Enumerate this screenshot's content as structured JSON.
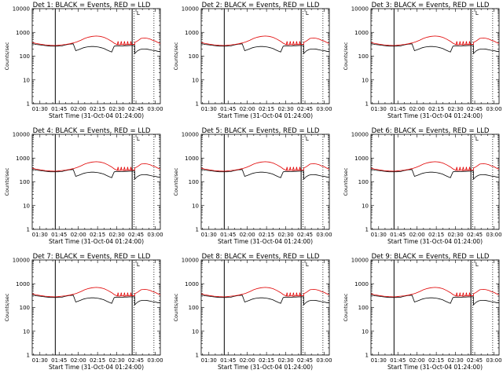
{
  "chart_data": {
    "layout": "3x3 grid",
    "type": "line",
    "panels": [
      {
        "title": "Det 1: BLACK = Events, RED = LLD"
      },
      {
        "title": "Det 2: BLACK = Events, RED = LLD"
      },
      {
        "title": "Det 3: BLACK = Events, RED = LLD"
      },
      {
        "title": "Det 4: BLACK = Events, RED = LLD"
      },
      {
        "title": "Det 5: BLACK = Events, RED = LLD"
      },
      {
        "title": "Det 6: BLACK = Events, RED = LLD"
      },
      {
        "title": "Det 7: BLACK = Events, RED = LLD"
      },
      {
        "title": "Det 8: BLACK = Events, RED = LLD"
      },
      {
        "title": "Det 9: BLACK = Events, RED = LLD"
      }
    ],
    "xlabel": "Start Time (31-Oct-04 01:24:00)",
    "ylabel": "Counts/sec",
    "x_unit": "minutes after 01:24:00",
    "xlim": [
      0,
      100
    ],
    "ylim": [
      1,
      10000
    ],
    "y_scale": "log",
    "x_ticks": [
      {
        "label": "01:30",
        "value": 6
      },
      {
        "label": "01:45",
        "value": 21
      },
      {
        "label": "02:00",
        "value": 36
      },
      {
        "label": "02:15",
        "value": 51
      },
      {
        "label": "02:30",
        "value": 66
      },
      {
        "label": "02:45",
        "value": 81
      },
      {
        "label": "03:00",
        "value": 96
      }
    ],
    "y_ticks": [
      {
        "label": "1",
        "value": 1
      },
      {
        "label": "10",
        "value": 10
      },
      {
        "label": "100",
        "value": 100
      },
      {
        "label": "1000",
        "value": 1000
      },
      {
        "label": "10000",
        "value": 10000
      }
    ],
    "marker_lines": {
      "solid": [
        18,
        78
      ],
      "dotted": [
        79.5,
        95
      ]
    },
    "corner_marker": {
      "label": "L",
      "x": 81.5
    },
    "series": [
      {
        "name": "Events",
        "color": "#000000",
        "x": [
          0,
          3,
          6,
          10,
          14,
          18,
          20,
          23,
          26,
          29,
          32,
          34,
          36,
          38,
          40,
          42,
          44,
          46,
          48,
          50,
          52,
          54,
          56,
          58,
          60,
          62,
          64,
          66,
          68,
          70,
          72,
          74,
          76,
          78,
          80,
          80.01,
          82,
          84,
          86,
          88,
          90,
          92,
          94,
          96,
          98,
          100
        ],
        "y": [
          340,
          310,
          300,
          280,
          265,
          265,
          265,
          270,
          300,
          320,
          330,
          170,
          185,
          205,
          225,
          240,
          250,
          255,
          255,
          250,
          240,
          225,
          210,
          185,
          165,
          150,
          260,
          275,
          270,
          270,
          275,
          275,
          280,
          280,
          285,
          130,
          165,
          190,
          200,
          200,
          195,
          185,
          175,
          170,
          160,
          155
        ]
      },
      {
        "name": "LLD",
        "color": "#e00000",
        "x": [
          0,
          3,
          6,
          10,
          14,
          18,
          20,
          23,
          26,
          29,
          32,
          35,
          38,
          41,
          44,
          47,
          50,
          53,
          56,
          59,
          62,
          64,
          66,
          68,
          70,
          72,
          74,
          76,
          78,
          80,
          80.01,
          82,
          85,
          88,
          90,
          92,
          94,
          96,
          98,
          100
        ],
        "y": [
          380,
          340,
          320,
          300,
          285,
          280,
          285,
          300,
          310,
          330,
          360,
          400,
          470,
          560,
          630,
          680,
          700,
          680,
          620,
          520,
          420,
          350,
          310,
          300,
          310,
          300,
          310,
          305,
          310,
          310,
          380,
          430,
          560,
          580,
          560,
          520,
          470,
          430,
          380,
          340
        ]
      }
    ],
    "red_spike_x": [
      67,
      69.5,
      72,
      74.5,
      77
    ],
    "red_spike_y": 420
  }
}
